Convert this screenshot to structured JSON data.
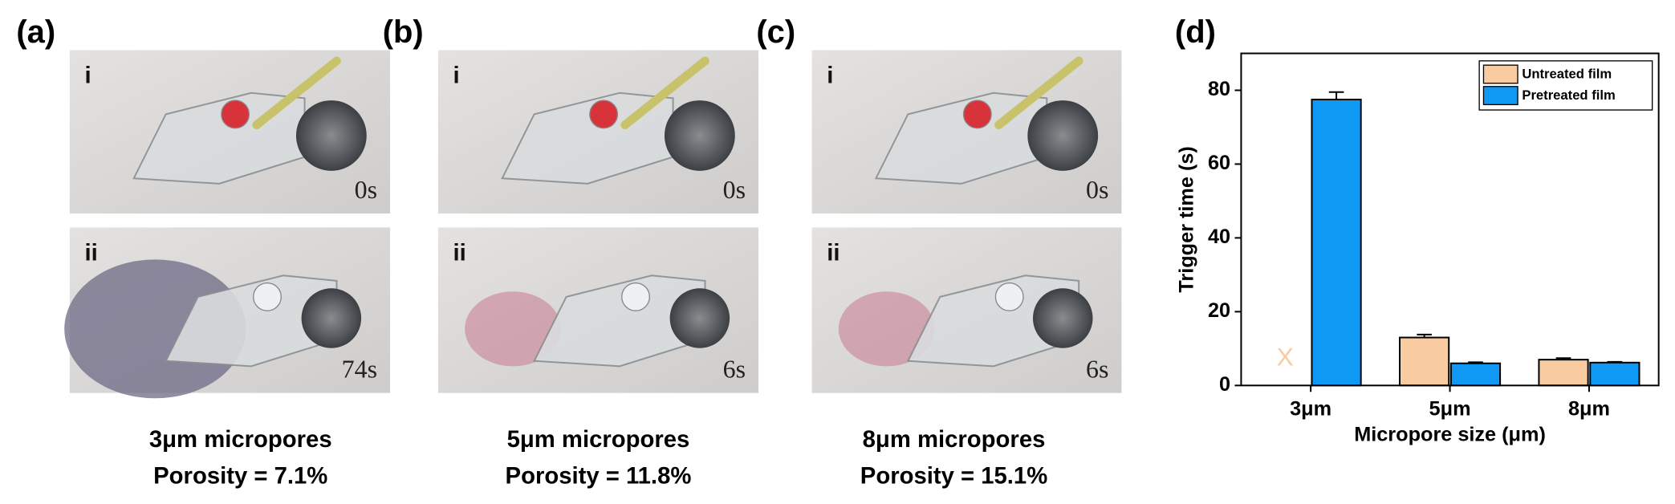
{
  "panels": [
    {
      "label": "(a)",
      "photo_labels": [
        "i",
        "ii"
      ],
      "times": [
        "0s",
        "74s"
      ],
      "caption": [
        "3μm micropores",
        "Porosity = 7.1%"
      ]
    },
    {
      "label": "(b)",
      "photo_labels": [
        "i",
        "ii"
      ],
      "times": [
        "0s",
        "6s"
      ],
      "caption": [
        "5μm micropores",
        "Porosity = 11.8%"
      ]
    },
    {
      "label": "(c)",
      "photo_labels": [
        "i",
        "ii"
      ],
      "times": [
        "0s",
        "6s"
      ],
      "caption": [
        "8μm micropores",
        "Porosity = 15.1%"
      ]
    }
  ],
  "chart_data": {
    "type": "bar",
    "panel_label": "(d)",
    "x_label": "Micropore size (μm)",
    "y_label": "Trigger time (s)",
    "categories": [
      "3μm",
      "5μm",
      "8μm"
    ],
    "series": [
      {
        "name": "Untreated film",
        "color": "#f8cba0",
        "values": [
          null,
          13,
          7
        ],
        "errors": [
          null,
          0.8,
          0.4
        ]
      },
      {
        "name": "Pretreated film",
        "color": "#0f99f5",
        "values": [
          77.5,
          6,
          6.2
        ],
        "errors": [
          2,
          0.3,
          0.2
        ]
      }
    ],
    "annotations": [
      "X"
    ],
    "ylim": [
      0,
      90
    ],
    "yticks": [
      0,
      20,
      40,
      60,
      80
    ],
    "legend": "upper right"
  }
}
